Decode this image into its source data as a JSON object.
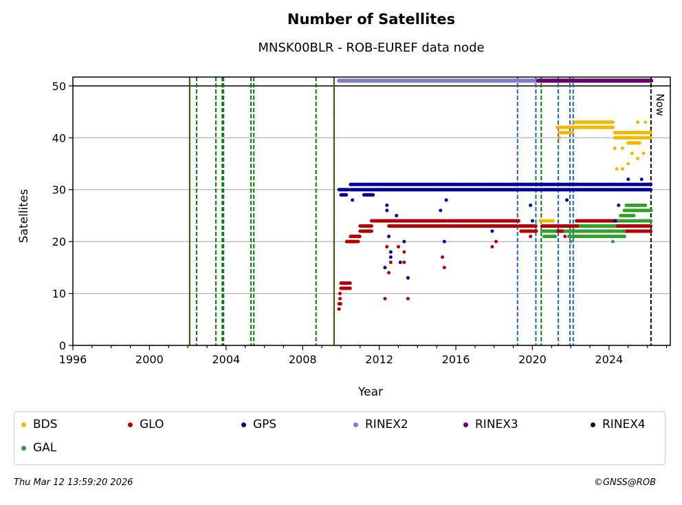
{
  "chart_data": {
    "type": "scatter",
    "title": "Number of Satellites",
    "subtitle": "MNSK00BLR - ROB-EUREF data node",
    "xlabel": "Year",
    "ylabel": "Satellites",
    "xlim": [
      1996,
      2027.2
    ],
    "ylim": [
      0,
      51.7
    ],
    "xticks": [
      1996,
      2000,
      2004,
      2008,
      2012,
      2016,
      2020,
      2024
    ],
    "yticks": [
      0,
      10,
      20,
      30,
      40,
      50
    ],
    "grid": "horizontal",
    "now_label": "Now",
    "now_x": 2026.19,
    "event_lines": [
      {
        "x": 2002.1,
        "color": "#008000",
        "style": "red-green"
      },
      {
        "x": 2002.46,
        "color": "#008000"
      },
      {
        "x": 2003.47,
        "color": "#008000"
      },
      {
        "x": 2003.8,
        "color": "#008000"
      },
      {
        "x": 2003.87,
        "color": "#008000"
      },
      {
        "x": 2005.3,
        "color": "#008000"
      },
      {
        "x": 2005.45,
        "color": "#008000"
      },
      {
        "x": 2008.7,
        "color": "#008000"
      },
      {
        "x": 2009.64,
        "color": "#008000",
        "style": "red-green"
      },
      {
        "x": 2019.22,
        "color": "#1565c0"
      },
      {
        "x": 2020.18,
        "color": "#1565c0"
      },
      {
        "x": 2020.46,
        "color": "#008000"
      },
      {
        "x": 2021.35,
        "color": "#1565c0"
      },
      {
        "x": 2021.96,
        "color": "#1565c0"
      },
      {
        "x": 2022.13,
        "color": "#1565c0"
      }
    ],
    "format_bars": [
      {
        "name": "RINEX2",
        "x0": 2009.9,
        "x1": 2020.2,
        "y": 51,
        "color": "#8080c0"
      },
      {
        "name": "RINEX3",
        "x0": 2020.3,
        "x1": 2026.2,
        "y": 51,
        "color": "#660066"
      }
    ],
    "series": [
      {
        "name": "BDS",
        "color": "#f5b800",
        "runs": [
          [
            2020.4,
            2021.1,
            24
          ],
          [
            2021.3,
            2022.1,
            42
          ],
          [
            2021.4,
            2022.1,
            41
          ],
          [
            2022.2,
            2024.2,
            43
          ],
          [
            2022.2,
            2024.2,
            42
          ],
          [
            2024.3,
            2026.2,
            41
          ],
          [
            2024.3,
            2026.2,
            40
          ],
          [
            2025.0,
            2025.6,
            39
          ]
        ],
        "points": [
          [
            2021.4,
            40
          ],
          [
            2024.3,
            38
          ],
          [
            2024.4,
            34
          ],
          [
            2024.7,
            34
          ],
          [
            2024.7,
            38
          ],
          [
            2025.0,
            35
          ],
          [
            2025.2,
            37
          ],
          [
            2025.5,
            36
          ],
          [
            2025.8,
            37
          ],
          [
            2025.9,
            43
          ],
          [
            2025.5,
            43
          ]
        ]
      },
      {
        "name": "GLO",
        "color": "#b30000",
        "runs": [
          [
            2009.9,
            2010.0,
            8
          ],
          [
            2010.0,
            2010.5,
            12
          ],
          [
            2010.0,
            2010.5,
            11
          ],
          [
            2010.3,
            2010.9,
            20
          ],
          [
            2010.5,
            2011.0,
            21
          ],
          [
            2011.0,
            2011.6,
            22
          ],
          [
            2011.0,
            2011.6,
            23
          ],
          [
            2011.6,
            2015.5,
            24
          ],
          [
            2012.5,
            2019.2,
            23
          ],
          [
            2015.6,
            2019.3,
            24
          ],
          [
            2019.3,
            2020.2,
            23
          ],
          [
            2019.4,
            2020.2,
            22
          ],
          [
            2020.5,
            2026.2,
            23
          ],
          [
            2020.5,
            2026.2,
            22
          ],
          [
            2022.3,
            2026.2,
            24
          ]
        ],
        "points": [
          [
            2009.9,
            7
          ],
          [
            2009.95,
            9
          ],
          [
            2009.95,
            10
          ],
          [
            2012.3,
            9
          ],
          [
            2012.4,
            19
          ],
          [
            2012.5,
            14
          ],
          [
            2012.6,
            16
          ],
          [
            2013.0,
            19
          ],
          [
            2013.3,
            18
          ],
          [
            2013.3,
            16
          ],
          [
            2013.5,
            9
          ],
          [
            2015.3,
            17
          ],
          [
            2015.4,
            15
          ],
          [
            2017.9,
            19
          ],
          [
            2018.1,
            20
          ],
          [
            2019.9,
            21
          ],
          [
            2021.7,
            21
          ],
          [
            2024.0,
            21
          ],
          [
            2024.8,
            21
          ]
        ]
      },
      {
        "name": "GPS",
        "color": "#000099",
        "runs": [
          [
            2009.9,
            2010.4,
            30
          ],
          [
            2010.0,
            2010.3,
            29
          ],
          [
            2010.5,
            2026.2,
            31
          ],
          [
            2010.5,
            2026.2,
            30
          ],
          [
            2011.2,
            2011.7,
            29
          ]
        ],
        "points": [
          [
            2010.6,
            28
          ],
          [
            2012.4,
            27
          ],
          [
            2012.4,
            26
          ],
          [
            2012.5,
            21
          ],
          [
            2012.6,
            18
          ],
          [
            2012.6,
            17
          ],
          [
            2012.3,
            15
          ],
          [
            2012.9,
            25
          ],
          [
            2013.1,
            16
          ],
          [
            2013.3,
            20
          ],
          [
            2013.5,
            13
          ],
          [
            2015.2,
            26
          ],
          [
            2015.4,
            20
          ],
          [
            2015.5,
            28
          ],
          [
            2017.9,
            22
          ],
          [
            2019.9,
            27
          ],
          [
            2020.0,
            24
          ],
          [
            2021.8,
            28
          ],
          [
            2024.3,
            24
          ],
          [
            2024.5,
            27
          ],
          [
            2025.0,
            32
          ],
          [
            2025.7,
            32
          ]
        ]
      },
      {
        "name": "RINEX2",
        "color": "#8080c0",
        "runs": [],
        "points": []
      },
      {
        "name": "RINEX3",
        "color": "#660066",
        "runs": [],
        "points": []
      },
      {
        "name": "RINEX4",
        "color": "#1a0010",
        "runs": [],
        "points": []
      },
      {
        "name": "GAL",
        "color": "#33a02c",
        "runs": [
          [
            2020.5,
            2021.2,
            22
          ],
          [
            2020.6,
            2021.2,
            21
          ],
          [
            2021.7,
            2024.8,
            22
          ],
          [
            2021.9,
            2024.8,
            21
          ],
          [
            2022.5,
            2024.3,
            23
          ],
          [
            2024.5,
            2026.2,
            24
          ],
          [
            2024.8,
            2026.2,
            26
          ],
          [
            2024.9,
            2025.9,
            27
          ],
          [
            2024.7,
            2025.3,
            25
          ]
        ],
        "points": [
          [
            2022.0,
            20
          ],
          [
            2024.2,
            20
          ],
          [
            2024.6,
            25
          ]
        ]
      }
    ]
  },
  "footer": {
    "timestamp": "Thu Mar 12 13:59:20 2026",
    "copyright": "©GNSS@ROB"
  }
}
